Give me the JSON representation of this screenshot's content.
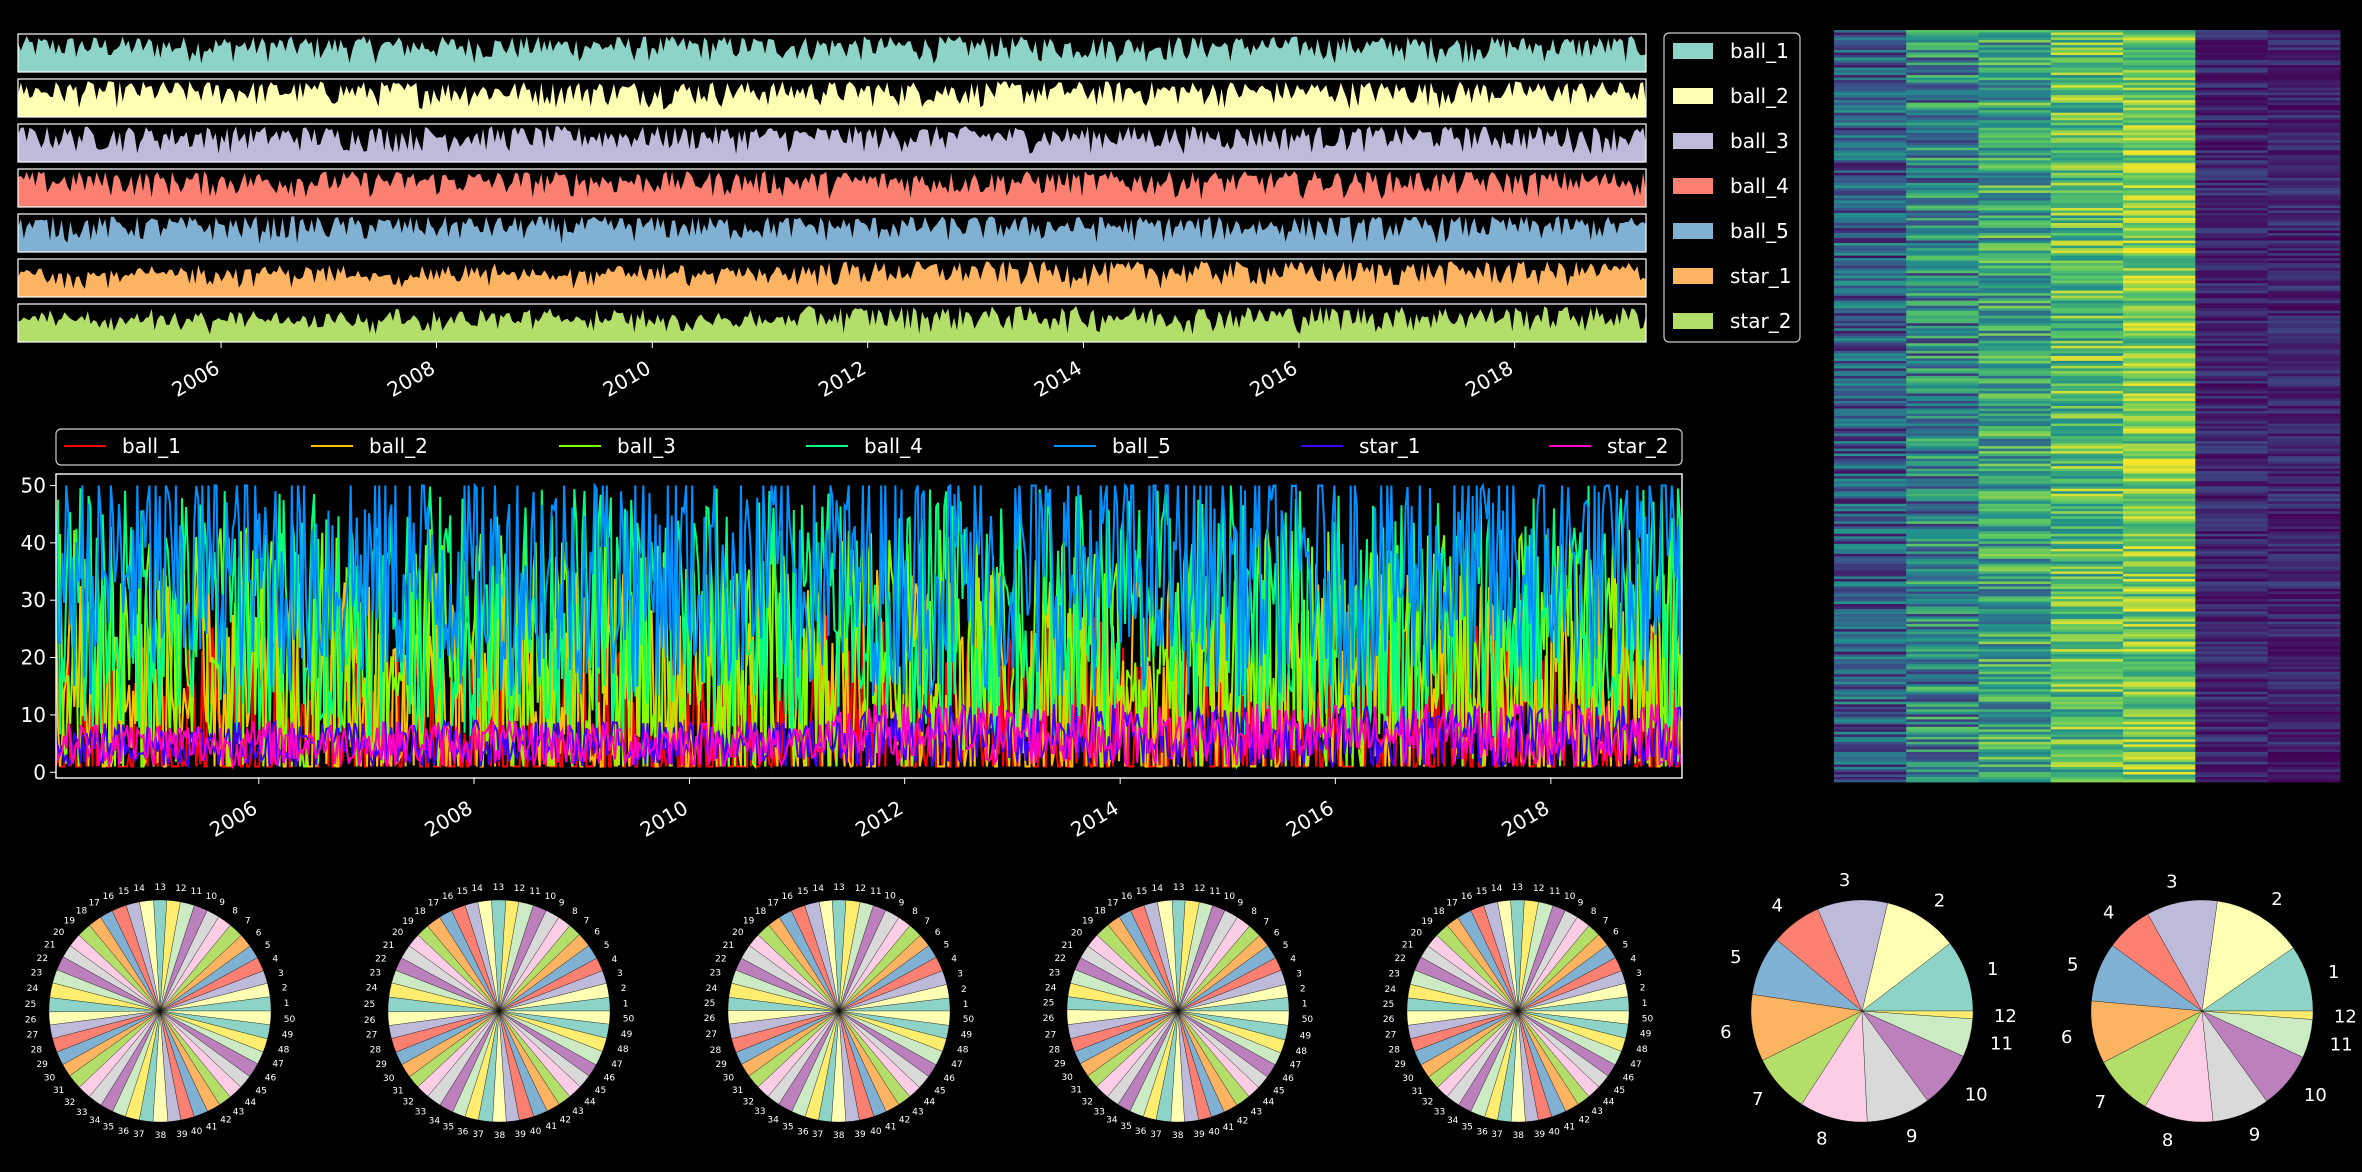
{
  "colors": {
    "background": "#000000",
    "palette": [
      "#8dd3c7",
      "#ffffb3",
      "#bebada",
      "#fb8072",
      "#80b1d3",
      "#fdb462",
      "#b3de69",
      "#fccde5",
      "#d9d9d9",
      "#bc80bd",
      "#ccebc5",
      "#ffed6f"
    ],
    "line_series": [
      "#ff0000",
      "#ffc000",
      "#80ff00",
      "#00ff80",
      "#0090ff",
      "#4000ff",
      "#ff00c0"
    ],
    "heatmap": [
      "#440154",
      "#3b528b",
      "#21918c",
      "#5ec962",
      "#fde725"
    ]
  },
  "chart_data": [
    {
      "id": "stacked_area_strips",
      "type": "area",
      "x_range": [
        "2004-02-13",
        "2019-03-22"
      ],
      "x_ticks": [
        "2006",
        "2008",
        "2010",
        "2012",
        "2014",
        "2016",
        "2018"
      ],
      "series": [
        {
          "name": "ball_1",
          "max": 50
        },
        {
          "name": "ball_2",
          "max": 50
        },
        {
          "name": "ball_3",
          "max": 50
        },
        {
          "name": "ball_4",
          "max": 50
        },
        {
          "name": "ball_5",
          "max": 50
        },
        {
          "name": "star_1",
          "max": 12
        },
        {
          "name": "star_2",
          "max": 12
        }
      ],
      "legend": "right"
    },
    {
      "id": "overlay_lines",
      "type": "line",
      "x_range": [
        "2004-02-13",
        "2019-03-22"
      ],
      "x_ticks": [
        "2006",
        "2008",
        "2010",
        "2012",
        "2014",
        "2016",
        "2018"
      ],
      "y_ticks": [
        "0",
        "10",
        "20",
        "30",
        "40",
        "50"
      ],
      "ylim": [
        -1,
        52
      ],
      "series": [
        {
          "name": "ball_1",
          "range": [
            1,
            50
          ]
        },
        {
          "name": "ball_2",
          "range": [
            1,
            50
          ]
        },
        {
          "name": "ball_3",
          "range": [
            1,
            50
          ]
        },
        {
          "name": "ball_4",
          "range": [
            1,
            50
          ]
        },
        {
          "name": "ball_5",
          "range": [
            1,
            50
          ]
        },
        {
          "name": "star_1",
          "range": [
            1,
            12
          ]
        },
        {
          "name": "star_2",
          "range": [
            1,
            12
          ]
        }
      ],
      "legend": "top"
    },
    {
      "id": "draws_heatmap",
      "type": "heatmap",
      "columns": [
        "ball_1",
        "ball_2",
        "ball_3",
        "ball_4",
        "ball_5",
        "star_1",
        "star_2"
      ],
      "vmin": 1,
      "vmax": 50
    },
    {
      "id": "pie_ball_1",
      "type": "pie",
      "labels": [
        "1",
        "2",
        "3",
        "4",
        "5",
        "6",
        "7",
        "8",
        "9",
        "10",
        "11",
        "12",
        "13",
        "14",
        "15",
        "16",
        "17",
        "18",
        "19",
        "20",
        "21",
        "22",
        "23",
        "24",
        "25",
        "26",
        "27",
        "28",
        "29",
        "30",
        "31",
        "32",
        "33",
        "34",
        "35",
        "36",
        "37",
        "38",
        "39",
        "40",
        "41",
        "42",
        "43",
        "44",
        "45",
        "46",
        "47",
        "48",
        "49",
        "50"
      ],
      "values": [
        24,
        23,
        22,
        24,
        23,
        23,
        25,
        24,
        22,
        23,
        24,
        23,
        22,
        24,
        23,
        25,
        22,
        23,
        24,
        23,
        22,
        24,
        23,
        25,
        24,
        22,
        23,
        24,
        23,
        22,
        25,
        23,
        24,
        22,
        23,
        24,
        23,
        25,
        22,
        23,
        24,
        23,
        22,
        24,
        23,
        25,
        22,
        23,
        24,
        23
      ]
    },
    {
      "id": "pie_ball_2",
      "type": "pie",
      "labels": [
        "1",
        "2",
        "3",
        "4",
        "5",
        "6",
        "7",
        "8",
        "9",
        "10",
        "11",
        "12",
        "13",
        "14",
        "15",
        "16",
        "17",
        "18",
        "19",
        "20",
        "21",
        "22",
        "23",
        "24",
        "25",
        "26",
        "27",
        "28",
        "29",
        "30",
        "31",
        "32",
        "33",
        "34",
        "35",
        "36",
        "37",
        "38",
        "39",
        "40",
        "41",
        "42",
        "43",
        "44",
        "45",
        "46",
        "47",
        "48",
        "49",
        "50"
      ],
      "values": [
        23,
        24,
        22,
        23,
        25,
        24,
        22,
        23,
        24,
        23,
        25,
        22,
        24,
        23,
        22,
        24,
        23,
        25,
        22,
        23,
        24,
        23,
        22,
        24,
        25,
        23,
        22,
        24,
        23,
        24,
        22,
        23,
        25,
        24,
        22,
        23,
        24,
        23,
        22,
        25,
        24,
        23,
        22,
        24,
        23,
        22,
        25,
        23,
        24,
        22
      ]
    },
    {
      "id": "pie_ball_3",
      "type": "pie",
      "labels": [
        "1",
        "2",
        "3",
        "4",
        "5",
        "6",
        "7",
        "8",
        "9",
        "10",
        "11",
        "12",
        "13",
        "14",
        "15",
        "16",
        "17",
        "18",
        "19",
        "20",
        "21",
        "22",
        "23",
        "24",
        "25",
        "26",
        "27",
        "28",
        "29",
        "30",
        "31",
        "32",
        "33",
        "34",
        "35",
        "36",
        "37",
        "38",
        "39",
        "40",
        "41",
        "42",
        "43",
        "44",
        "45",
        "46",
        "47",
        "48",
        "49",
        "50"
      ],
      "values": [
        22,
        23,
        24,
        25,
        23,
        22,
        24,
        23,
        25,
        22,
        23,
        24,
        23,
        22,
        25,
        24,
        23,
        22,
        24,
        23,
        25,
        22,
        23,
        24,
        22,
        23,
        25,
        24,
        22,
        23,
        24,
        23,
        22,
        25,
        24,
        23,
        22,
        24,
        23,
        25,
        22,
        24,
        23,
        22,
        24,
        23,
        25,
        22,
        23,
        24
      ]
    },
    {
      "id": "pie_ball_4",
      "type": "pie",
      "labels": [
        "1",
        "2",
        "3",
        "4",
        "5",
        "6",
        "7",
        "8",
        "9",
        "10",
        "11",
        "12",
        "13",
        "14",
        "15",
        "16",
        "17",
        "18",
        "19",
        "20",
        "21",
        "22",
        "23",
        "24",
        "25",
        "26",
        "27",
        "28",
        "29",
        "30",
        "31",
        "32",
        "33",
        "34",
        "35",
        "36",
        "37",
        "38",
        "39",
        "40",
        "41",
        "42",
        "43",
        "44",
        "45",
        "46",
        "47",
        "48",
        "49",
        "50"
      ],
      "values": [
        23,
        22,
        25,
        23,
        24,
        22,
        23,
        25,
        24,
        22,
        23,
        24,
        22,
        25,
        23,
        24,
        22,
        23,
        25,
        24,
        23,
        22,
        24,
        23,
        22,
        25,
        24,
        23,
        22,
        24,
        23,
        25,
        22,
        23,
        24,
        22,
        25,
        23,
        24,
        22,
        23,
        24,
        25,
        22,
        23,
        24,
        22,
        23,
        25,
        24
      ]
    },
    {
      "id": "pie_ball_5",
      "type": "pie",
      "labels": [
        "1",
        "2",
        "3",
        "4",
        "5",
        "6",
        "7",
        "8",
        "9",
        "10",
        "11",
        "12",
        "13",
        "14",
        "15",
        "16",
        "17",
        "18",
        "19",
        "20",
        "21",
        "22",
        "23",
        "24",
        "25",
        "26",
        "27",
        "28",
        "29",
        "30",
        "31",
        "32",
        "33",
        "34",
        "35",
        "36",
        "37",
        "38",
        "39",
        "40",
        "41",
        "42",
        "43",
        "44",
        "45",
        "46",
        "47",
        "48",
        "49",
        "50"
      ],
      "values": [
        24,
        23,
        22,
        24,
        25,
        23,
        22,
        24,
        23,
        22,
        25,
        24,
        23,
        22,
        24,
        23,
        25,
        22,
        24,
        23,
        22,
        24,
        25,
        23,
        22,
        24,
        23,
        22,
        25,
        24,
        23,
        22,
        24,
        23,
        25,
        22,
        23,
        24,
        22,
        23,
        25,
        24,
        22,
        23,
        24,
        22,
        25,
        23,
        24,
        22
      ]
    },
    {
      "id": "pie_star_1",
      "type": "pie",
      "labels": [
        "1",
        "2",
        "3",
        "4",
        "5",
        "6",
        "7",
        "8",
        "9",
        "10",
        "11",
        "12"
      ],
      "values": [
        120,
        125,
        118,
        85,
        100,
        112,
        98,
        114,
        107,
        95,
        64,
        13
      ]
    },
    {
      "id": "pie_star_2",
      "type": "pie",
      "labels": [
        "1",
        "2",
        "3",
        "4",
        "5",
        "6",
        "7",
        "8",
        "9",
        "10",
        "11",
        "12"
      ],
      "values": [
        110,
        150,
        118,
        78,
        98,
        104,
        100,
        116,
        95,
        94,
        64,
        14
      ]
    }
  ]
}
